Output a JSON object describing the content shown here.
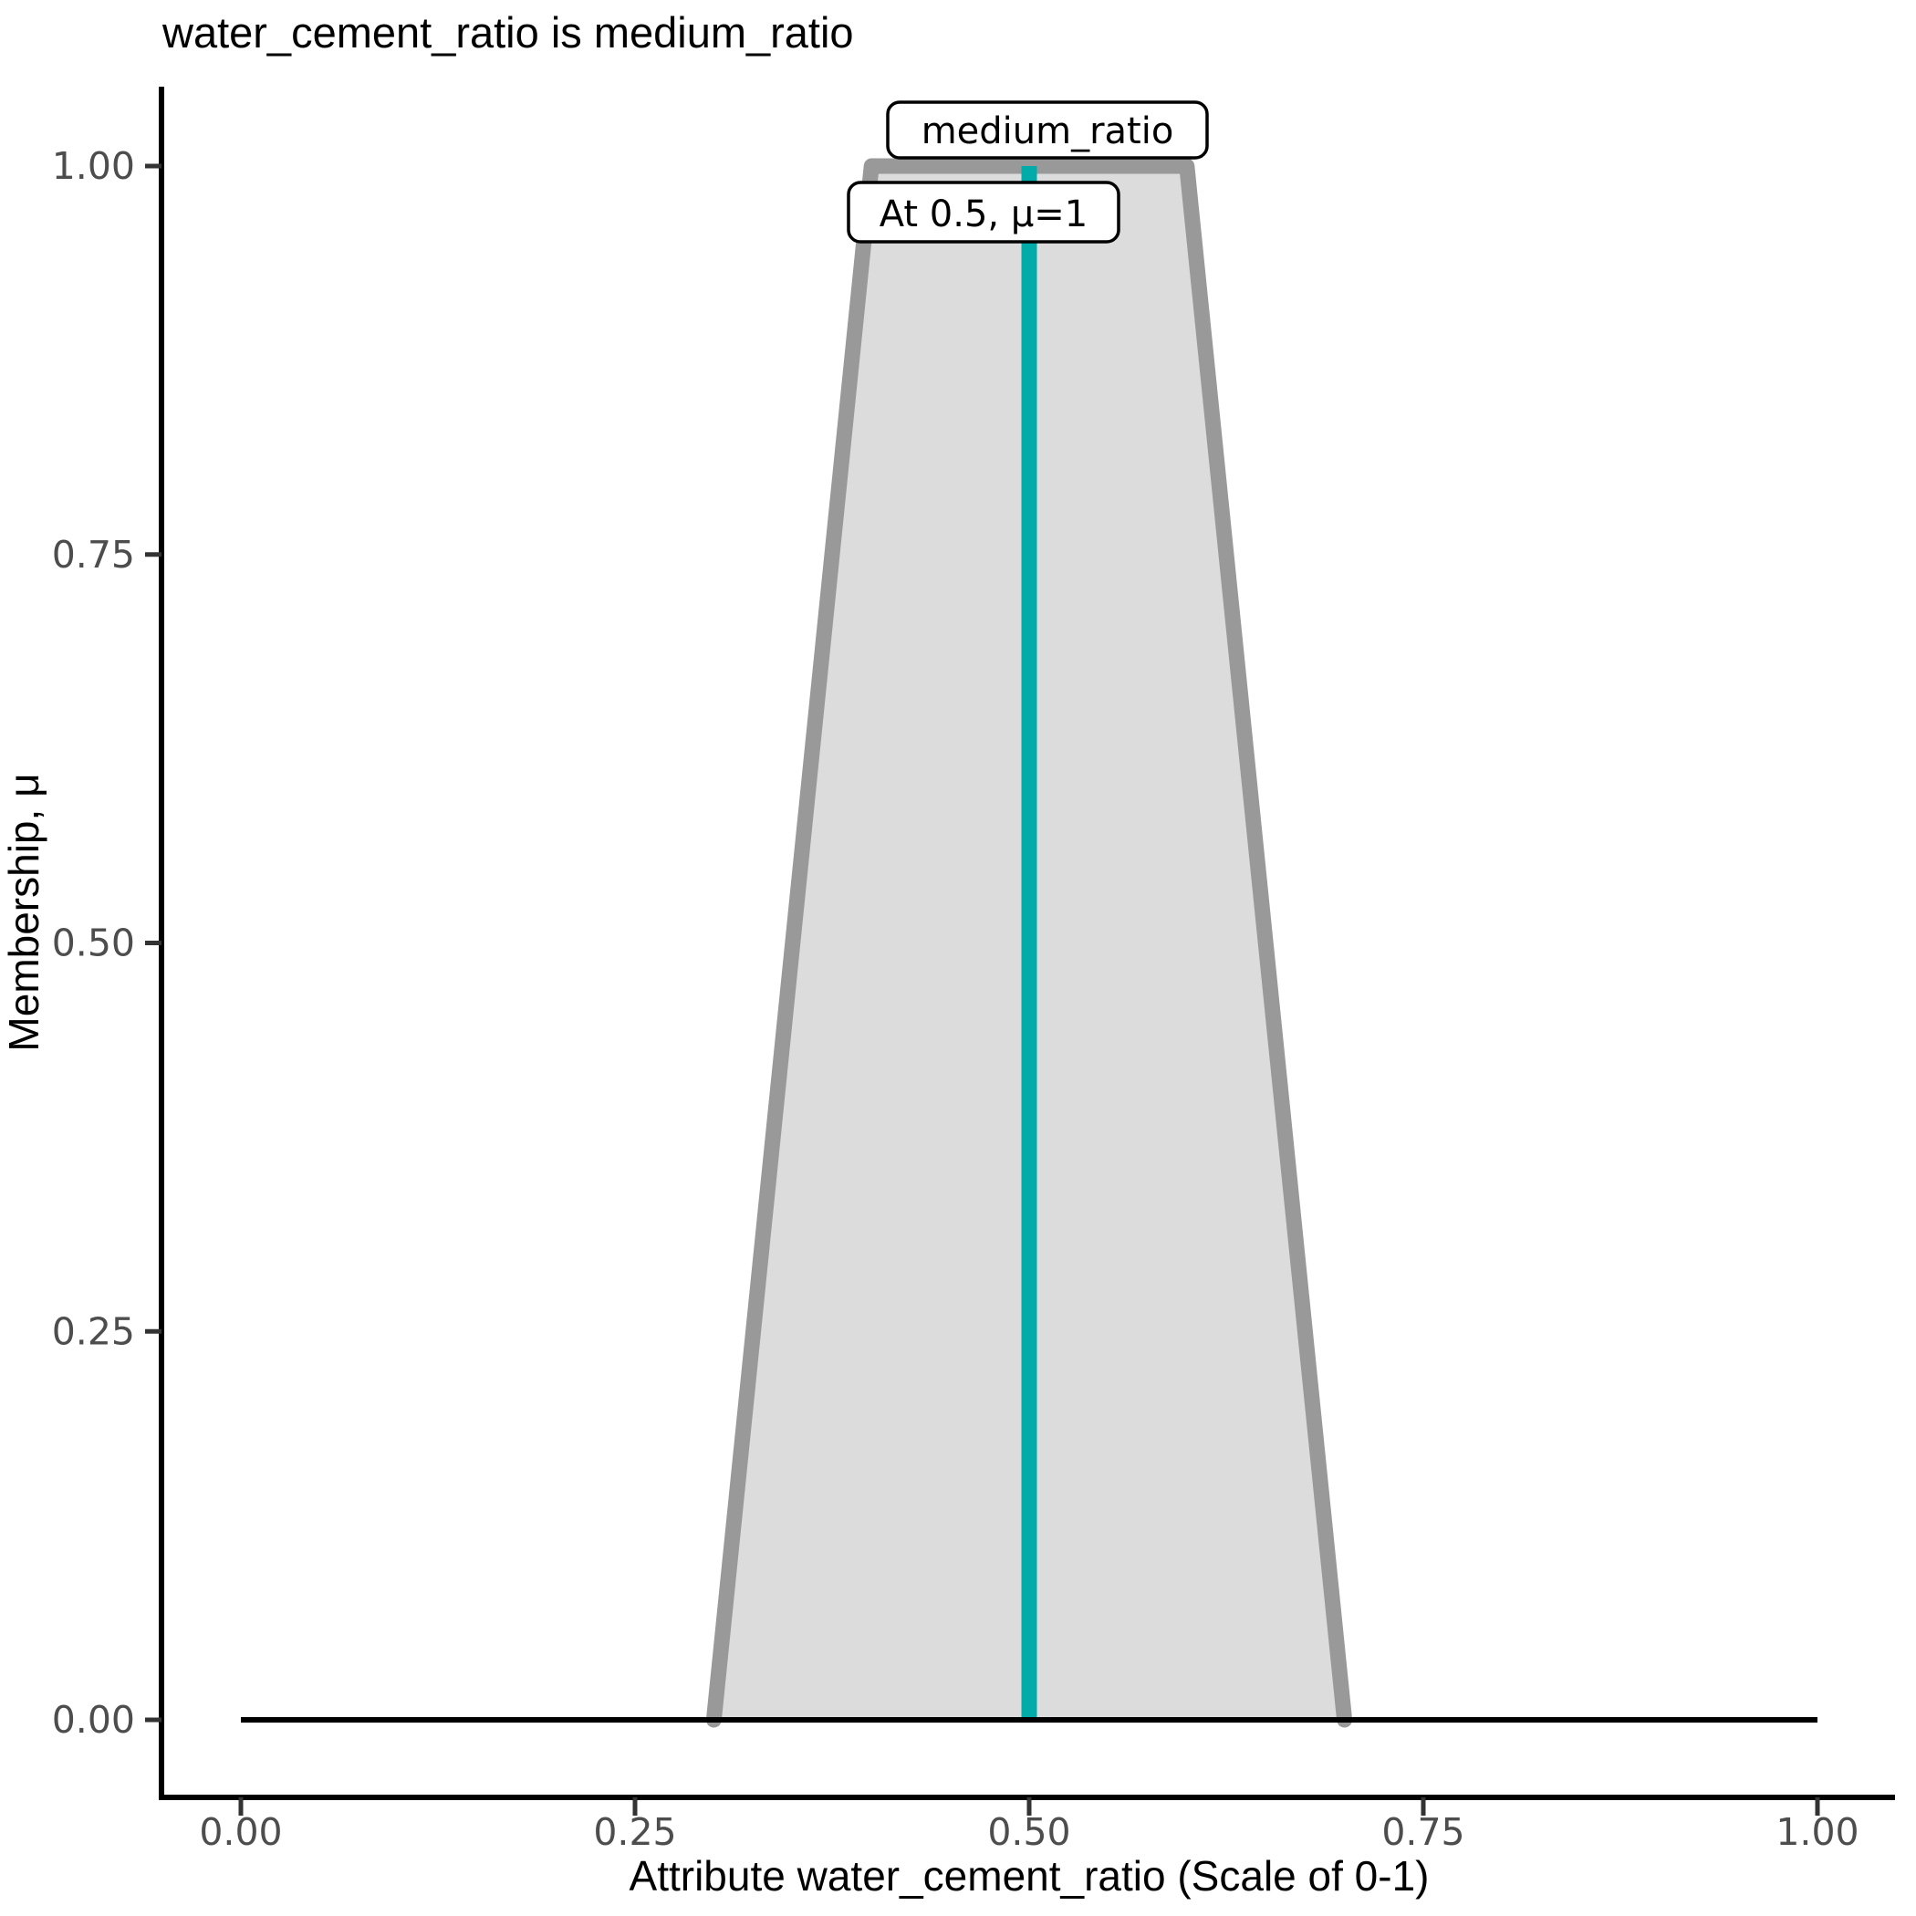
{
  "chart_data": {
    "type": "area",
    "title": "water_cement_ratio is medium_ratio",
    "xlabel": "Attribute water_cement_ratio (Scale of 0-1)",
    "ylabel": "Membership, μ",
    "xlim": [
      0,
      1
    ],
    "ylim": [
      0,
      1
    ],
    "grid": false,
    "legend": false,
    "x_ticks": {
      "values": [
        0,
        0.25,
        0.5,
        0.75,
        1.0
      ],
      "labels": [
        "0.00",
        "0.25",
        "0.50",
        "0.75",
        "1.00"
      ]
    },
    "y_ticks": {
      "values": [
        0,
        0.25,
        0.5,
        0.75,
        1.0
      ],
      "labels": [
        "0.00",
        "0.25",
        "0.50",
        "0.75",
        "1.00"
      ]
    },
    "series": [
      {
        "name": "medium_ratio membership function",
        "shape": "trapezoid",
        "points_x": [
          0.3,
          0.4,
          0.6,
          0.7
        ],
        "points_y": [
          0,
          1,
          1,
          0
        ],
        "fill_color": "#dcdcdc",
        "stroke_color": "#999999"
      },
      {
        "name": "crisp input line",
        "shape": "vline",
        "x": 0.5,
        "mu": 1,
        "color": "#00aba9"
      },
      {
        "name": "zero membership baseline",
        "shape": "hline",
        "y": 0,
        "x_range": [
          0,
          1
        ],
        "color": "#000000"
      }
    ],
    "annotations": [
      {
        "label": "medium_ratio"
      },
      {
        "label": "At 0.5, μ=1"
      }
    ]
  },
  "colors": {
    "background": "#ffffff",
    "axis": "#000000",
    "tick": "#333333",
    "tick_label": "#4d4d4d",
    "membership_fill": "#dcdcdc",
    "membership_stroke": "#999999",
    "crisp_line": "#00aba9"
  }
}
